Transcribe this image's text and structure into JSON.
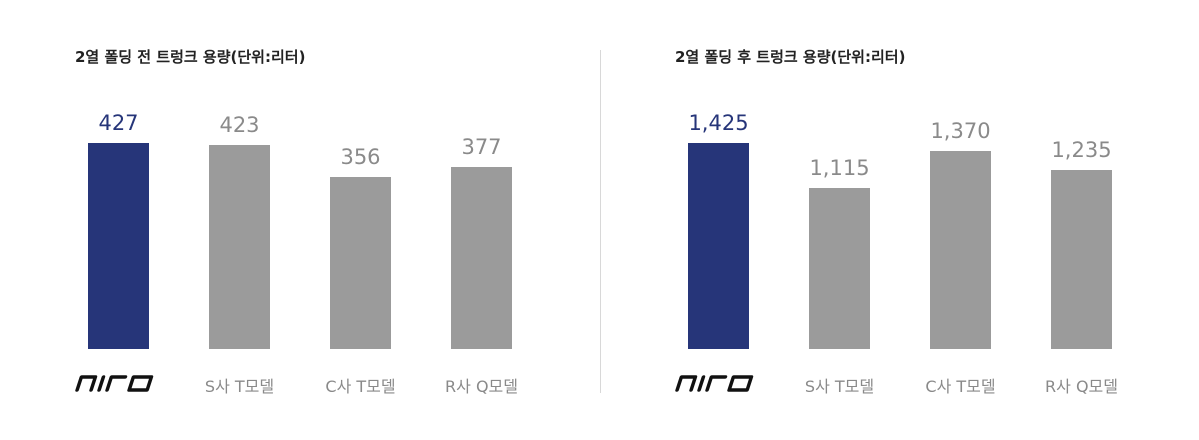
{
  "colors": {
    "highlight": "#263579",
    "other": "#9b9b9b",
    "highlight_text": "#263579",
    "other_text": "#8a8a8a"
  },
  "chart_data": [
    {
      "type": "bar",
      "title": "2열 폴딩 전 트렁크 용량(단위:리터)",
      "categories": [
        "niro",
        "S사 T모델",
        "C사 T모델",
        "R사 Q모델"
      ],
      "values": [
        427,
        423,
        356,
        377
      ],
      "value_labels": [
        "427",
        "423",
        "356",
        "377"
      ],
      "highlight_index": 0,
      "logo_icon": "niro-logo-icon"
    },
    {
      "type": "bar",
      "title": "2열 폴딩 후 트렁크 용량(단위:리터)",
      "categories": [
        "niro",
        "S사 T모델",
        "C사 T모델",
        "R사 Q모델"
      ],
      "values": [
        1425,
        1115,
        1370,
        1235
      ],
      "value_labels": [
        "1,425",
        "1,115",
        "1,370",
        "1,235"
      ],
      "highlight_index": 0,
      "logo_icon": "niro-logo-icon"
    }
  ]
}
